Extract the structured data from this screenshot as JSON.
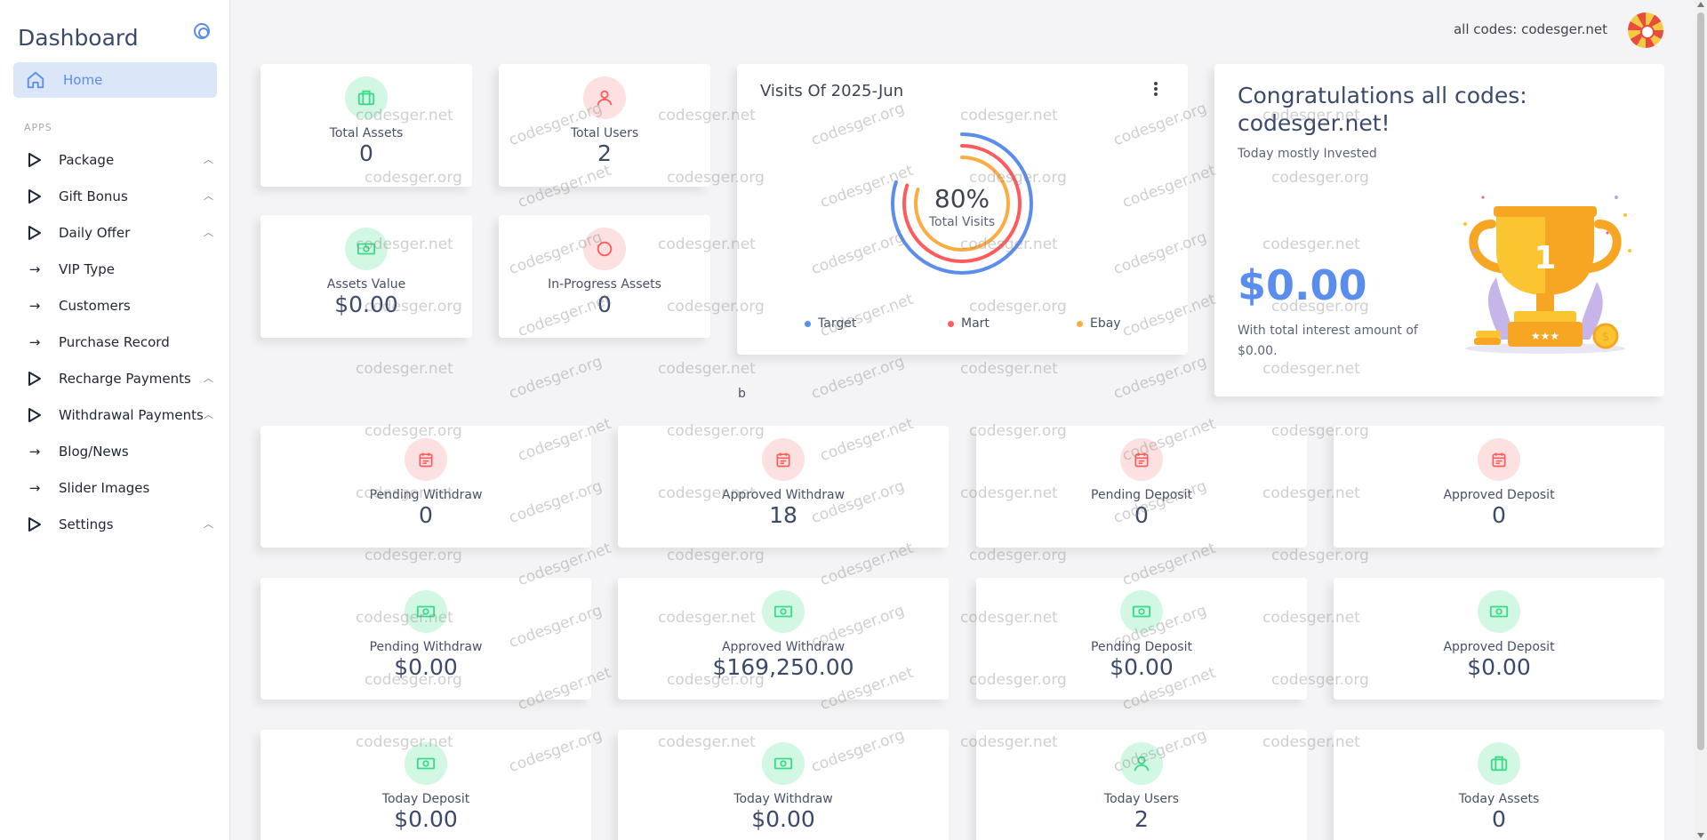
{
  "sidebar": {
    "title": "Dashboard",
    "home_label": "Home",
    "section_label": "APPS",
    "items": [
      {
        "label": "Package",
        "icon": "play-triangle-icon",
        "expandable": true
      },
      {
        "label": "Gift Bonus",
        "icon": "play-triangle-icon",
        "expandable": true
      },
      {
        "label": "Daily Offer",
        "icon": "play-triangle-icon",
        "expandable": true
      },
      {
        "label": "VIP Type",
        "icon": "arrow-right-icon",
        "expandable": false
      },
      {
        "label": "Customers",
        "icon": "arrow-right-icon",
        "expandable": false
      },
      {
        "label": "Purchase Record",
        "icon": "arrow-right-icon",
        "expandable": false
      },
      {
        "label": "Recharge Payments",
        "icon": "play-triangle-icon",
        "expandable": true
      },
      {
        "label": "Withdrawal Payments",
        "icon": "play-triangle-icon",
        "expandable": true
      },
      {
        "label": "Blog/News",
        "icon": "arrow-right-icon",
        "expandable": false
      },
      {
        "label": "Slider Images",
        "icon": "arrow-right-icon",
        "expandable": false
      },
      {
        "label": "Settings",
        "icon": "play-triangle-icon",
        "expandable": true
      }
    ]
  },
  "topbar": {
    "user_text": "all codes: codesger.net"
  },
  "top_stats": [
    {
      "label": "Total Assets",
      "value": "0",
      "icon": "briefcase-icon",
      "tone": "green"
    },
    {
      "label": "Total Users",
      "value": "2",
      "icon": "user-icon",
      "tone": "red"
    },
    {
      "label": "Assets Value",
      "value": "$0.00",
      "icon": "money-icon",
      "tone": "green"
    },
    {
      "label": "In-Progress Assets",
      "value": "0",
      "icon": "circle-icon",
      "tone": "red"
    }
  ],
  "visits": {
    "title": "Visits Of 2025-Jun",
    "center_value": "80%",
    "center_label": "Total Visits",
    "legend": [
      {
        "name": "Target",
        "color": "#5a8dee"
      },
      {
        "name": "Mart",
        "color": "#ff5b5c"
      },
      {
        "name": "Ebay",
        "color": "#fdac41"
      }
    ]
  },
  "congrats": {
    "title": "Congratulations all codes: codesger.net!",
    "subtitle": "Today mostly Invested",
    "amount": "$0.00",
    "note": "With total interest amount of $0.00."
  },
  "stray_text": "b",
  "grid_stats": [
    {
      "label": "Pending Withdraw",
      "value": "0",
      "icon": "calendar-icon",
      "tone": "red"
    },
    {
      "label": "Approved Withdraw",
      "value": "18",
      "icon": "calendar-icon",
      "tone": "red"
    },
    {
      "label": "Pending Deposit",
      "value": "0",
      "icon": "calendar-icon",
      "tone": "red"
    },
    {
      "label": "Approved Deposit",
      "value": "0",
      "icon": "calendar-icon",
      "tone": "red"
    },
    {
      "label": "Pending Withdraw",
      "value": "$0.00",
      "icon": "money-icon",
      "tone": "green"
    },
    {
      "label": "Approved Withdraw",
      "value": "$169,250.00",
      "icon": "money-icon",
      "tone": "green"
    },
    {
      "label": "Pending Deposit",
      "value": "$0.00",
      "icon": "money-icon",
      "tone": "green"
    },
    {
      "label": "Approved Deposit",
      "value": "$0.00",
      "icon": "money-icon",
      "tone": "green"
    },
    {
      "label": "Today Deposit",
      "value": "$0.00",
      "icon": "money-icon",
      "tone": "green"
    },
    {
      "label": "Today Withdraw",
      "value": "$0.00",
      "icon": "money-icon",
      "tone": "green"
    },
    {
      "label": "Today Users",
      "value": "2",
      "icon": "user-icon",
      "tone": "green"
    },
    {
      "label": "Today Assets",
      "value": "0",
      "icon": "briefcase-icon",
      "tone": "green"
    }
  ],
  "watermarks": [
    "codesger.net",
    "codesger.org"
  ],
  "colors": {
    "primary": "#5a8dee",
    "danger": "#ff5b5c",
    "warning": "#fdac41",
    "success": "#39da8a"
  }
}
